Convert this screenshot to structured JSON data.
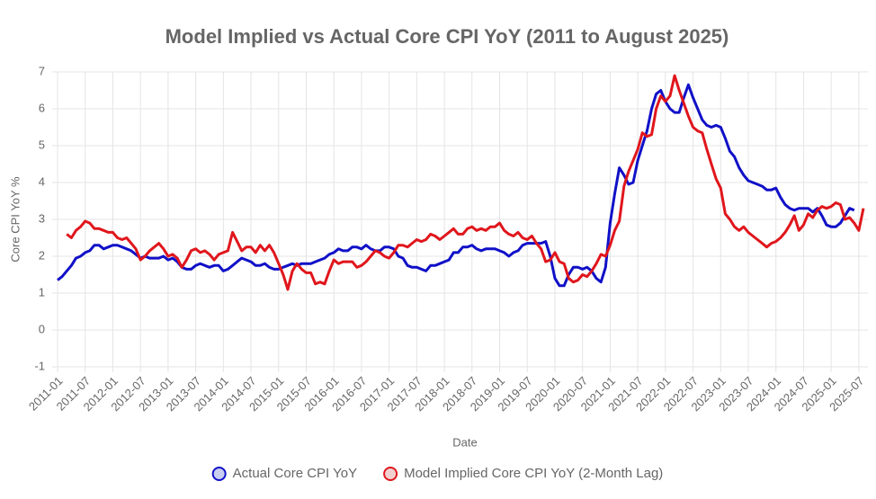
{
  "chart_data": {
    "type": "line",
    "title": "Model Implied vs Actual Core CPI YoY (2011 to August 2025)",
    "xlabel": "Date",
    "ylabel": "Core CPI YoY %",
    "categories": [
      "2011-01",
      null,
      null,
      null,
      null,
      null,
      "2011-07",
      null,
      null,
      null,
      null,
      null,
      "2012-01",
      null,
      null,
      null,
      null,
      null,
      "2012-07",
      null,
      null,
      null,
      null,
      null,
      "2013-01",
      null,
      null,
      null,
      null,
      null,
      "2013-07",
      null,
      null,
      null,
      null,
      null,
      "2014-01",
      null,
      null,
      null,
      null,
      null,
      "2014-07",
      null,
      null,
      null,
      null,
      null,
      "2015-01",
      null,
      null,
      null,
      null,
      null,
      "2015-07",
      null,
      null,
      null,
      null,
      null,
      "2016-01",
      null,
      null,
      null,
      null,
      null,
      "2016-07",
      null,
      null,
      null,
      null,
      null,
      "2017-01",
      null,
      null,
      null,
      null,
      null,
      "2017-07",
      null,
      null,
      null,
      null,
      null,
      "2018-01",
      null,
      null,
      null,
      null,
      null,
      "2018-07",
      null,
      null,
      null,
      null,
      null,
      "2019-01",
      null,
      null,
      null,
      null,
      null,
      "2019-07",
      null,
      null,
      null,
      null,
      null,
      "2020-01",
      null,
      null,
      null,
      null,
      null,
      "2020-07",
      null,
      null,
      null,
      null,
      null,
      "2021-01",
      null,
      null,
      null,
      null,
      null,
      "2021-07",
      null,
      null,
      null,
      null,
      null,
      "2022-01",
      null,
      null,
      null,
      null,
      null,
      "2022-07",
      null,
      null,
      null,
      null,
      null,
      "2023-01",
      null,
      null,
      null,
      null,
      null,
      "2023-07",
      null,
      null,
      null,
      null,
      null,
      "2024-01",
      null,
      null,
      null,
      null,
      null,
      "2024-07",
      null,
      null,
      null,
      null,
      null,
      "2025-01",
      null,
      null,
      null,
      null,
      null,
      "2025-07",
      null
    ],
    "series": [
      {
        "name": "Actual Core CPI YoY",
        "color": "#1010c8",
        "legend_fill": "#c9cdf0",
        "values": [
          1.35,
          1.45,
          1.6,
          1.75,
          1.95,
          2.0,
          2.1,
          2.15,
          2.3,
          2.3,
          2.2,
          2.25,
          2.3,
          2.3,
          2.25,
          2.2,
          2.15,
          2.05,
          1.95,
          2.0,
          1.95,
          1.95,
          1.95,
          2.0,
          1.9,
          1.95,
          1.85,
          1.7,
          1.65,
          1.65,
          1.75,
          1.8,
          1.75,
          1.7,
          1.75,
          1.75,
          1.6,
          1.65,
          1.75,
          1.85,
          1.95,
          1.9,
          1.85,
          1.75,
          1.75,
          1.8,
          1.7,
          1.65,
          1.65,
          1.7,
          1.75,
          1.8,
          1.75,
          1.8,
          1.8,
          1.8,
          1.85,
          1.9,
          1.95,
          2.05,
          2.1,
          2.2,
          2.15,
          2.15,
          2.25,
          2.25,
          2.2,
          2.3,
          2.2,
          2.15,
          2.15,
          2.25,
          2.25,
          2.2,
          2.0,
          1.95,
          1.75,
          1.7,
          1.7,
          1.65,
          1.6,
          1.75,
          1.75,
          1.8,
          1.85,
          1.9,
          2.1,
          2.1,
          2.25,
          2.25,
          2.3,
          2.2,
          2.15,
          2.2,
          2.2,
          2.2,
          2.15,
          2.1,
          2.0,
          2.1,
          2.15,
          2.3,
          2.35,
          2.35,
          2.35,
          2.35,
          2.4,
          2.0,
          1.4,
          1.2,
          1.2,
          1.5,
          1.7,
          1.7,
          1.65,
          1.7,
          1.6,
          1.4,
          1.3,
          1.7,
          2.9,
          3.7,
          4.4,
          4.2,
          3.95,
          4.0,
          4.6,
          5.0,
          5.4,
          6.0,
          6.4,
          6.5,
          6.2,
          6.0,
          5.9,
          5.9,
          6.3,
          6.65,
          6.3,
          6.0,
          5.7,
          5.55,
          5.5,
          5.55,
          5.5,
          5.2,
          4.85,
          4.7,
          4.4,
          4.2,
          4.05,
          4.0,
          3.95,
          3.9,
          3.8,
          3.8,
          3.85,
          3.6,
          3.4,
          3.3,
          3.25,
          3.3,
          3.3,
          3.3,
          3.2,
          3.3,
          3.1,
          2.85,
          2.8,
          2.8,
          2.9,
          3.1,
          3.3,
          3.25,
          null,
          null
        ]
      },
      {
        "name": "Model Implied Core CPI YoY (2-Month Lag)",
        "color": "#e0161c",
        "legend_fill": "#f2d0d0",
        "values": [
          null,
          null,
          2.6,
          2.5,
          2.7,
          2.8,
          2.95,
          2.9,
          2.75,
          2.75,
          2.7,
          2.65,
          2.65,
          2.5,
          2.45,
          2.5,
          2.35,
          2.2,
          1.9,
          2.0,
          2.15,
          2.25,
          2.35,
          2.2,
          2.0,
          2.05,
          1.95,
          1.7,
          1.9,
          2.15,
          2.2,
          2.1,
          2.15,
          2.05,
          1.9,
          2.05,
          2.1,
          2.15,
          2.65,
          2.4,
          2.15,
          2.25,
          2.25,
          2.1,
          2.3,
          2.15,
          2.3,
          2.1,
          1.8,
          1.5,
          1.1,
          1.6,
          1.8,
          1.65,
          1.55,
          1.55,
          1.25,
          1.3,
          1.25,
          1.6,
          1.9,
          1.8,
          1.85,
          1.85,
          1.85,
          1.7,
          1.75,
          1.85,
          2.0,
          2.15,
          2.1,
          2.0,
          1.95,
          2.1,
          2.3,
          2.3,
          2.25,
          2.35,
          2.45,
          2.4,
          2.45,
          2.6,
          2.55,
          2.45,
          2.55,
          2.65,
          2.75,
          2.6,
          2.6,
          2.75,
          2.8,
          2.7,
          2.75,
          2.7,
          2.8,
          2.8,
          2.9,
          2.7,
          2.6,
          2.55,
          2.65,
          2.5,
          2.45,
          2.55,
          2.35,
          2.2,
          1.85,
          1.9,
          2.1,
          1.85,
          1.8,
          1.4,
          1.3,
          1.35,
          1.5,
          1.45,
          1.6,
          1.8,
          2.05,
          2.0,
          2.3,
          2.7,
          2.95,
          3.9,
          4.3,
          4.6,
          4.9,
          5.35,
          5.25,
          5.3,
          6.0,
          6.35,
          6.2,
          6.35,
          6.9,
          6.5,
          6.15,
          5.8,
          5.5,
          5.4,
          5.35,
          4.9,
          4.5,
          4.1,
          3.85,
          3.15,
          3.0,
          2.8,
          2.7,
          2.8,
          2.65,
          2.55,
          2.45,
          2.35,
          2.25,
          2.35,
          2.4,
          2.5,
          2.65,
          2.85,
          3.1,
          2.7,
          2.85,
          3.15,
          3.05,
          3.25,
          3.35,
          3.3,
          3.35,
          3.45,
          3.4,
          3.0,
          3.05,
          2.9,
          2.7,
          3.3
        ]
      }
    ],
    "ylim": [
      -1,
      7
    ],
    "yticks": [
      -1,
      0,
      1,
      2,
      3,
      4,
      5,
      6,
      7
    ],
    "grid": true,
    "legend": "bottom"
  }
}
